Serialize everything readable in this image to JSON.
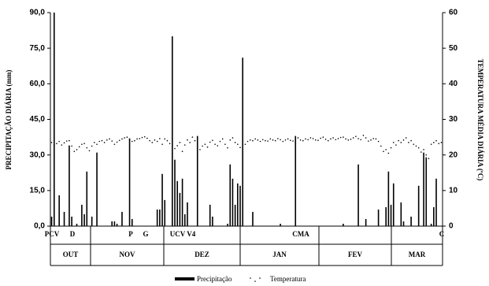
{
  "chart_data": {
    "type": "combo",
    "ylabel": "PRECIPITAÇÃO DIÁRIA (mm)",
    "y2label": "TEMPERATURA MÉDIA DIÁRIA (ºC)",
    "ylim": [
      0,
      90
    ],
    "yticks": [
      {
        "value": 0,
        "label": "0,0"
      },
      {
        "value": 15,
        "label": "15,0"
      },
      {
        "value": 30,
        "label": "30,0"
      },
      {
        "value": 45,
        "label": "45,0"
      },
      {
        "value": 60,
        "label": "60,0"
      },
      {
        "value": 75,
        "label": "75,0"
      },
      {
        "value": 90,
        "label": "90,0"
      }
    ],
    "y2lim": [
      0,
      60
    ],
    "y2ticks": [
      0,
      10,
      20,
      30,
      40,
      50,
      60
    ],
    "stages": [
      "PCV",
      "D",
      "P",
      "G",
      "UCV V4",
      "CMA",
      "C"
    ],
    "months": [
      "OUT",
      "NOV",
      "DEZ",
      "JAN",
      "FEV",
      "MAR"
    ],
    "series": [
      {
        "name": "Precipitação",
        "type": "bar",
        "color": "#000000",
        "values": [
          4,
          90,
          0,
          13,
          0,
          6,
          0,
          34,
          4,
          0,
          1,
          0,
          9,
          5,
          23,
          0,
          4,
          0,
          31,
          0,
          0,
          0,
          0,
          0,
          2,
          2,
          1,
          0,
          6,
          0,
          0,
          37,
          3,
          0,
          0,
          0,
          0,
          0,
          0,
          0,
          0,
          0,
          7,
          7,
          22,
          11,
          0,
          0,
          80,
          28,
          19,
          14,
          20,
          5,
          10,
          0,
          0,
          0,
          38,
          0,
          0,
          0,
          0,
          9,
          4,
          0,
          0,
          0,
          0,
          0,
          1,
          26,
          20,
          9,
          18,
          17,
          71,
          0,
          0,
          0,
          6,
          0,
          0,
          0,
          0,
          0,
          0,
          0,
          0,
          0,
          0,
          1,
          0,
          0,
          0,
          0,
          0,
          38,
          0,
          0,
          0,
          0,
          0,
          0,
          0,
          0,
          0,
          0,
          0,
          0,
          0,
          0,
          0,
          0,
          0,
          0,
          1,
          0,
          0,
          0,
          0,
          0,
          26,
          0,
          0,
          3,
          0,
          0,
          0,
          0,
          7,
          0,
          0,
          8,
          23,
          9,
          18,
          0,
          0,
          10,
          2,
          0,
          0,
          4,
          0,
          0,
          17,
          0,
          31,
          29,
          0,
          1,
          8,
          20,
          0,
          0
        ]
      },
      {
        "name": "Temperatura",
        "type": "scatter",
        "axis": "y2",
        "color": "#000000",
        "values": [
          23.5,
          23.0,
          23.2,
          23.8,
          22.8,
          23.4,
          23.9,
          24.0,
          22.5,
          21.0,
          21.5,
          22.3,
          23.0,
          23.2,
          22.0,
          21.2,
          22.5,
          23.5,
          23.0,
          23.8,
          24.0,
          23.5,
          24.2,
          24.5,
          23.9,
          23.0,
          23.6,
          24.1,
          24.5,
          24.8,
          25.0,
          24.2,
          23.8,
          24.0,
          24.5,
          24.6,
          24.9,
          25.1,
          24.7,
          24.0,
          23.5,
          24.2,
          23.8,
          24.6,
          23.0,
          24.5,
          24.0,
          23.2,
          20.5,
          21.8,
          22.6,
          23.5,
          21.0,
          22.8,
          24.2,
          23.5,
          25.0,
          24.0,
          21.8,
          21.5,
          22.5,
          23.0,
          22.2,
          23.6,
          24.1,
          23.0,
          22.6,
          23.8,
          24.5,
          23.0,
          22.0,
          24.2,
          24.8,
          23.5,
          23.0,
          22.1,
          21.5,
          23.0,
          23.8,
          24.2,
          24.0,
          24.5,
          24.2,
          23.8,
          24.3,
          24.0,
          23.9,
          24.5,
          24.2,
          24.0,
          24.6,
          24.3,
          23.8,
          24.2,
          24.5,
          24.1,
          23.9,
          24.6,
          24.8,
          24.2,
          24.0,
          24.5,
          24.3,
          24.8,
          24.6,
          24.2,
          24.1,
          24.7,
          25.0,
          24.4,
          24.0,
          24.5,
          24.8,
          24.3,
          24.6,
          24.9,
          25.0,
          24.5,
          24.2,
          24.4,
          24.8,
          25.2,
          24.6,
          24.3,
          25.5,
          24.8,
          23.9,
          24.2,
          24.6,
          24.5,
          23.8,
          22.5,
          21.0,
          21.5,
          20.5,
          22.0,
          23.5,
          22.8,
          24.0,
          23.5,
          24.2,
          24.8,
          23.5,
          24.0,
          23.0,
          22.5,
          22.0,
          20.8,
          21.5,
          20.0,
          19.0,
          23.0,
          23.5,
          24.0,
          23.2,
          23.5
        ]
      }
    ]
  }
}
